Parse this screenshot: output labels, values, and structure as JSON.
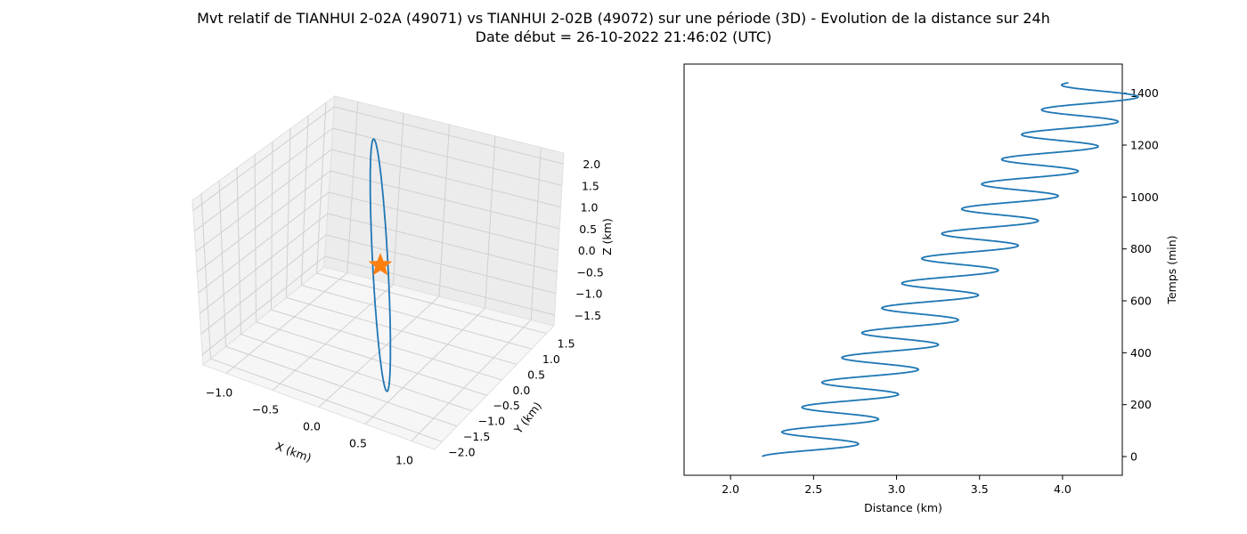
{
  "figure": {
    "title_line1": "Mvt relatif de TIANHUI 2-02A (49071) vs TIANHUI 2-02B (49072) sur une période (3D) - Evolution de la distance sur 24h",
    "title_line2": "Date début = 26-10-2022 21:46:02 (UTC)"
  },
  "colors": {
    "series": "#1f77b4",
    "marker": "#ff7f0e"
  },
  "chart_data": [
    {
      "type": "line3d",
      "xlabel": "X (km)",
      "ylabel": "Y (km)",
      "zlabel": "Z (km)",
      "xlim": [
        -1.2,
        1.2
      ],
      "ylim": [
        -2.2,
        1.8
      ],
      "zlim": [
        -1.9,
        2.3
      ],
      "x_ticks": [
        "−1.0",
        "−0.5",
        "0.0",
        "0.5",
        "1.0"
      ],
      "y_ticks": [
        "−2.0",
        "−1.5",
        "−1.0",
        "−0.5",
        "0.0",
        "0.5",
        "1.0",
        "1.5"
      ],
      "z_ticks": [
        "−1.5",
        "−1.0",
        "−0.5",
        "0.0",
        "0.5",
        "1.0",
        "1.5",
        "2.0"
      ],
      "orbit": {
        "center": [
          0,
          0,
          0
        ],
        "end_a": [
          -0.85,
          -0.4,
          2.0
        ],
        "end_b": [
          0.85,
          0.4,
          -2.0
        ],
        "semi_minor": 0.06
      },
      "marker": {
        "shape": "star",
        "x": 0.0,
        "y": 0.0,
        "z": 0.0
      },
      "grid": true
    },
    {
      "type": "line",
      "xlabel": "Distance (km)",
      "ylabel": "Temps (min)",
      "xlim": [
        1.72,
        4.36
      ],
      "ylim": [
        -72,
        1512
      ],
      "x_ticks": [
        2.0,
        2.5,
        3.0,
        3.5,
        4.0
      ],
      "x_tick_labels": [
        "2.0",
        "2.5",
        "3.0",
        "3.5",
        "4.0"
      ],
      "y_ticks": [
        0,
        200,
        400,
        600,
        800,
        1000,
        1200,
        1400
      ],
      "y_tick_labels": [
        "0",
        "200",
        "400",
        "600",
        "800",
        "1000",
        "1200",
        "1400"
      ],
      "y_axis_side": "right",
      "grid": false,
      "series": [
        {
          "model": "distance = a + b*t + c*cos(2*pi*t/P)",
          "a": 2.45,
          "b": 0.00126,
          "c": -0.26,
          "P": 95.5,
          "t_range": [
            0,
            1440
          ]
        }
      ]
    }
  ]
}
